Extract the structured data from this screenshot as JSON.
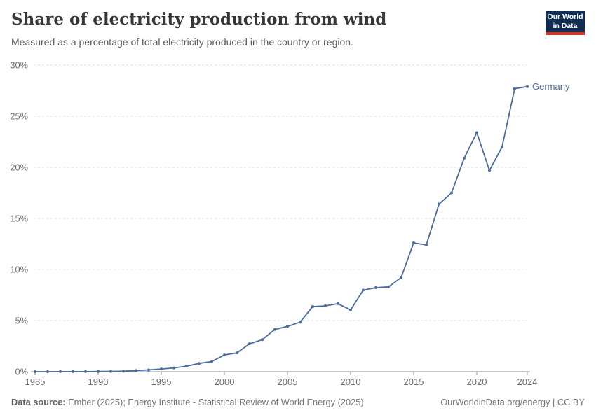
{
  "header": {
    "title": "Share of electricity production from wind",
    "subtitle": "Measured as a percentage of total electricity produced in the country or region."
  },
  "logo": {
    "line1": "Our World",
    "line2": "in Data"
  },
  "chart_data": {
    "type": "line",
    "title": "Share of electricity production from wind",
    "xlabel": "",
    "ylabel": "",
    "xlim": [
      1985,
      2024
    ],
    "ylim": [
      0,
      30
    ],
    "x_ticks": [
      1985,
      1990,
      1995,
      2000,
      2005,
      2010,
      2015,
      2020,
      2024
    ],
    "y_ticks": [
      0,
      5,
      10,
      15,
      20,
      25,
      30
    ],
    "y_tick_suffix": "%",
    "grid": "dashed-horizontal",
    "legend_position": "end-of-line-label",
    "series": [
      {
        "name": "Germany",
        "color": "#4C6A9C",
        "x": [
          1985,
          1986,
          1987,
          1988,
          1989,
          1990,
          1991,
          1992,
          1993,
          1994,
          1995,
          1996,
          1997,
          1998,
          1999,
          2000,
          2001,
          2002,
          2003,
          2004,
          2005,
          2006,
          2007,
          2008,
          2009,
          2010,
          2011,
          2012,
          2013,
          2014,
          2015,
          2016,
          2017,
          2018,
          2019,
          2020,
          2021,
          2022,
          2023,
          2024
        ],
        "values": [
          0.0,
          0.0,
          0.01,
          0.01,
          0.01,
          0.02,
          0.03,
          0.05,
          0.11,
          0.17,
          0.27,
          0.37,
          0.54,
          0.81,
          0.99,
          1.64,
          1.84,
          2.73,
          3.13,
          4.13,
          4.43,
          4.84,
          6.37,
          6.44,
          6.65,
          6.04,
          7.98,
          8.22,
          8.3,
          9.2,
          12.6,
          12.4,
          16.4,
          17.5,
          20.9,
          23.4,
          19.7,
          22.0,
          27.7,
          27.9
        ]
      }
    ]
  },
  "footer": {
    "datasource_label": "Data source:",
    "datasource_text": " Ember (2025); Energy Institute - Statistical Review of World Energy (2025)",
    "credit": "OurWorldinData.org/energy | CC BY"
  },
  "colors": {
    "line": "#4C6A9C",
    "grid": "#dcdcdc",
    "axis": "#8f8f8f",
    "tick_label": "#6d6d6d",
    "title": "#373737",
    "subtitle": "#5a5a5a",
    "footer": "#757575",
    "logo_bg": "#0f2c51",
    "logo_red": "#d0382b"
  }
}
